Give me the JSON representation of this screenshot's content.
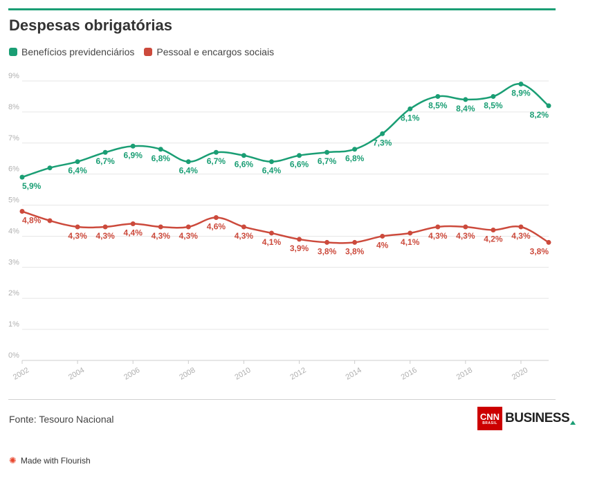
{
  "title": "Despesas obrigatórias",
  "source": "Fonte: Tesouro Nacional",
  "logo": {
    "cnn": "CNN",
    "brasil": "BRASIL",
    "business": "BUSINESS"
  },
  "flourish": {
    "icon": "flourish-icon",
    "text": "Made with Flourish"
  },
  "colors": {
    "green": "#1a9e74",
    "red": "#cc4a3c",
    "grid": "#e6e6e6",
    "tick": "#b0b0b0"
  },
  "chart_data": {
    "type": "line",
    "title": "Despesas obrigatórias",
    "x": [
      2002,
      2003,
      2004,
      2005,
      2006,
      2007,
      2008,
      2009,
      2010,
      2011,
      2012,
      2013,
      2014,
      2015,
      2016,
      2017,
      2018,
      2019,
      2020,
      2021
    ],
    "x_ticks": [
      2002,
      2004,
      2006,
      2008,
      2010,
      2012,
      2014,
      2016,
      2018,
      2020
    ],
    "y_ticks": [
      "0%",
      "1%",
      "2%",
      "3%",
      "4%",
      "5%",
      "6%",
      "7%",
      "8%",
      "9%"
    ],
    "ylim": [
      0,
      9
    ],
    "grid": true,
    "legend": "top-left",
    "series": [
      {
        "name": "Benefícios previdenciários",
        "color": "#1a9e74",
        "values": [
          5.9,
          6.2,
          6.4,
          6.7,
          6.9,
          6.8,
          6.4,
          6.7,
          6.6,
          6.4,
          6.6,
          6.7,
          6.8,
          7.3,
          8.1,
          8.5,
          8.4,
          8.5,
          8.9,
          8.2
        ],
        "labels": [
          "5,9%",
          "",
          "6,4%",
          "6,7%",
          "6,9%",
          "6,8%",
          "6,4%",
          "6,7%",
          "6,6%",
          "6,4%",
          "6,6%",
          "6,7%",
          "6,8%",
          "7,3%",
          "8,1%",
          "8,5%",
          "8,4%",
          "8,5%",
          "8,9%",
          "8,2%"
        ]
      },
      {
        "name": "Pessoal e encargos sociais",
        "color": "#cc4a3c",
        "values": [
          4.8,
          4.5,
          4.3,
          4.3,
          4.4,
          4.3,
          4.3,
          4.6,
          4.3,
          4.1,
          3.9,
          3.8,
          3.8,
          4.0,
          4.1,
          4.3,
          4.3,
          4.2,
          4.3,
          3.8
        ],
        "labels": [
          "4,8%",
          "",
          "4,3%",
          "4,3%",
          "4,4%",
          "4,3%",
          "4,3%",
          "4,6%",
          "4,3%",
          "4,1%",
          "3,9%",
          "3,8%",
          "3,8%",
          "4%",
          "4,1%",
          "4,3%",
          "4,3%",
          "4,2%",
          "4,3%",
          "3,8%"
        ]
      }
    ]
  }
}
